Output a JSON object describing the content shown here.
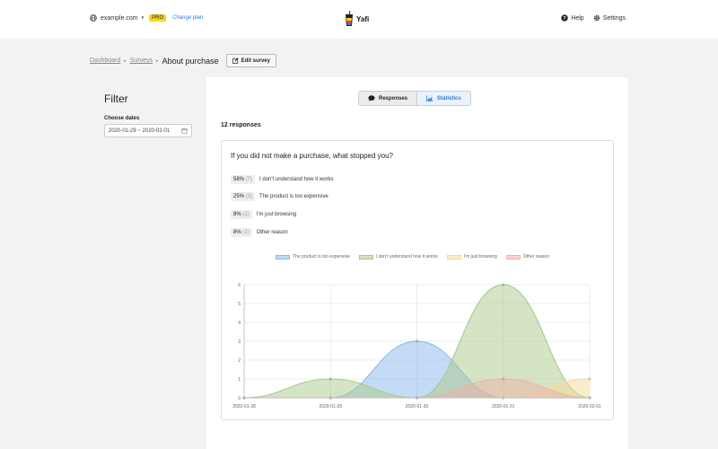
{
  "header": {
    "site": "example.com",
    "pro_badge": "PRO",
    "change_plan": "Change plan",
    "logo_text": "Yafi",
    "help": "Help",
    "settings": "Settings"
  },
  "breadcrumb": {
    "dashboard": "Dashboard",
    "surveys": "Surveys",
    "current": "About purchase",
    "edit_button": "Edit survey"
  },
  "filter": {
    "title": "Filter",
    "choose_dates_label": "Choose dates",
    "date_range": "2020-01-29 ~ 2020-02-01"
  },
  "tabs": {
    "responses": "Responses",
    "statistics": "Statistics"
  },
  "summary": {
    "responses_count": "12 responses"
  },
  "question": {
    "text": "If you did not make a purchase, what stopped you?",
    "answers": [
      {
        "percent": "58%",
        "count": "(7)",
        "label": "I don't understand how it works"
      },
      {
        "percent": "25%",
        "count": "(3)",
        "label": "The product is too expensive"
      },
      {
        "percent": "8%",
        "count": "(1)",
        "label": "I'm just browsing"
      },
      {
        "percent": "8%",
        "count": "(1)",
        "label": "Other reason"
      }
    ]
  },
  "colors": {
    "accent": "#2a7de1",
    "pro": "#f7d51d"
  },
  "chart_data": {
    "type": "area",
    "x": [
      "2020-01-28",
      "2020-01-29",
      "2020-01-30",
      "2020-01-31",
      "2020-02-01"
    ],
    "ylim": [
      0,
      6
    ],
    "yticks": [
      0,
      1,
      2,
      3,
      4,
      5,
      6
    ],
    "series": [
      {
        "name": "The product is too expensive",
        "values": [
          0,
          0,
          3,
          0,
          0
        ],
        "color": "#8ab8ec"
      },
      {
        "name": "I don't understand how it works",
        "values": [
          0,
          1,
          0,
          6,
          0
        ],
        "color": "#a9c98a"
      },
      {
        "name": "I'm just browsing",
        "values": [
          0,
          0,
          0,
          0,
          1
        ],
        "color": "#f5d99a"
      },
      {
        "name": "Other reason",
        "values": [
          0,
          0,
          0,
          1,
          0
        ],
        "color": "#eeb0a8"
      }
    ],
    "grid": true,
    "legend": "top"
  }
}
